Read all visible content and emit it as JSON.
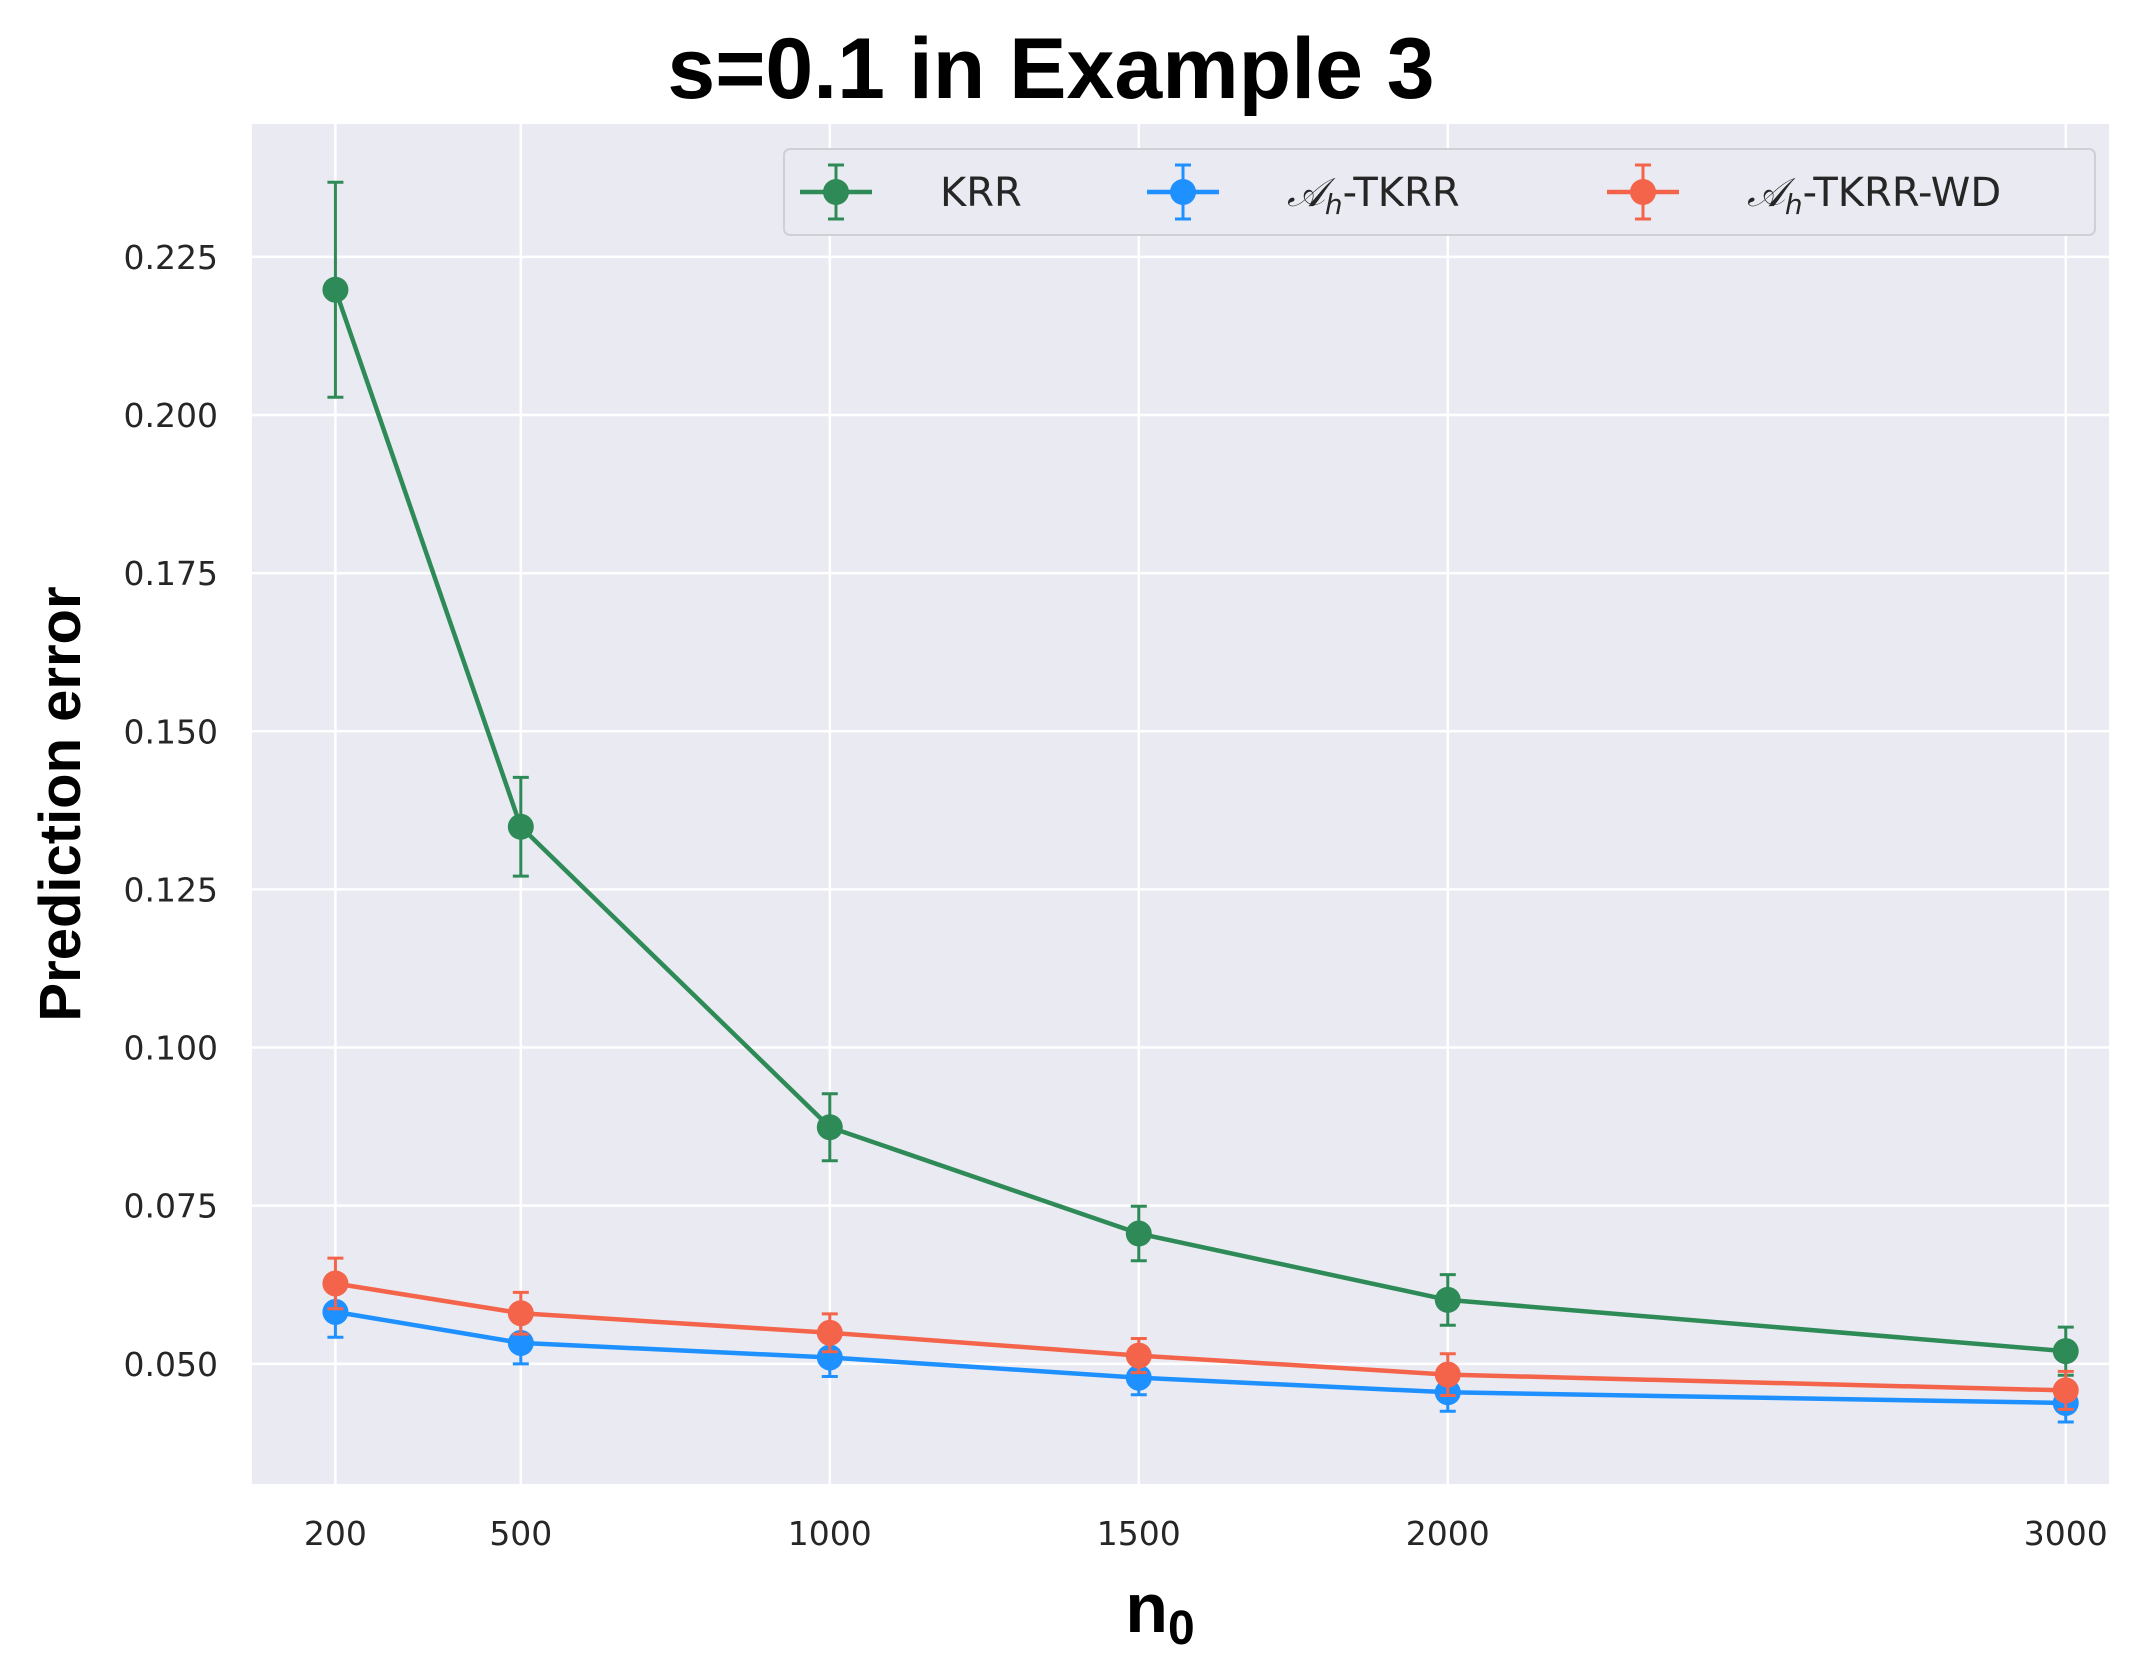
{
  "chart_data": {
    "type": "line",
    "title": "s=0.1 in Example 3",
    "xlabel": "n",
    "xlabel_subscript": "0",
    "ylabel": "Prediction error",
    "x": [
      200,
      500,
      1000,
      1500,
      2000,
      3000
    ],
    "xticks": [
      "200",
      "500",
      "1000",
      "1500",
      "2000",
      "3000"
    ],
    "yticks": [
      "0.050",
      "0.075",
      "0.100",
      "0.125",
      "0.150",
      "0.175",
      "0.200",
      "0.225"
    ],
    "ytick_values": [
      0.05,
      0.075,
      0.1,
      0.125,
      0.15,
      0.175,
      0.2,
      0.225
    ],
    "xlim": [
      65,
      3070
    ],
    "ylim": [
      0.031,
      0.246
    ],
    "grid": true,
    "legend_position": "top-right",
    "series": [
      {
        "name": "KRR",
        "legend_prefix": "",
        "legend_sub": "",
        "legend_suffix": "KRR",
        "color": "#2e8b57",
        "values": [
          0.2198,
          0.1349,
          0.0874,
          0.0706,
          0.0601,
          0.052
        ],
        "errors": [
          0.017,
          0.0078,
          0.0053,
          0.0043,
          0.004,
          0.0038
        ]
      },
      {
        "name": "𝒜h-TKRR",
        "legend_prefix": "𝒜",
        "legend_sub": "h",
        "legend_suffix": "-TKRR",
        "color": "#1e90ff",
        "values": [
          0.0582,
          0.0533,
          0.051,
          0.0478,
          0.0455,
          0.0438
        ],
        "errors": [
          0.004,
          0.0033,
          0.003,
          0.0027,
          0.003,
          0.003
        ]
      },
      {
        "name": "𝒜h-TKRR-WD",
        "legend_prefix": "𝒜",
        "legend_sub": "h",
        "legend_suffix": "-TKRR-WD",
        "color": "#f4644a",
        "values": [
          0.0627,
          0.058,
          0.0549,
          0.0513,
          0.0483,
          0.0458
        ],
        "errors": [
          0.004,
          0.0033,
          0.003,
          0.0027,
          0.0033,
          0.003
        ]
      }
    ]
  }
}
